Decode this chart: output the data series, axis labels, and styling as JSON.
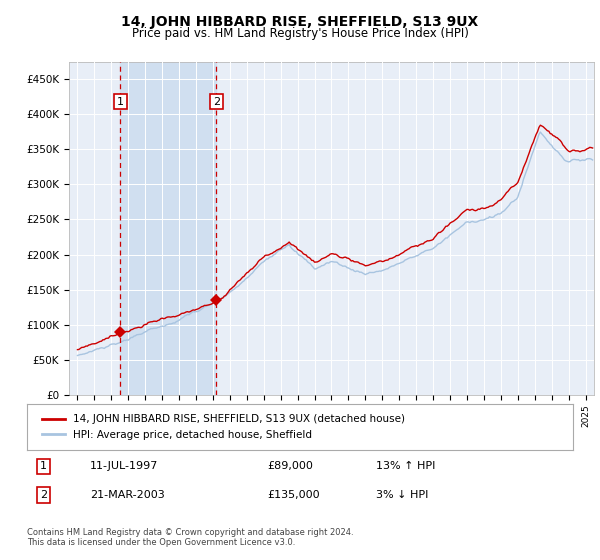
{
  "title": "14, JOHN HIBBARD RISE, SHEFFIELD, S13 9UX",
  "subtitle": "Price paid vs. HM Land Registry's House Price Index (HPI)",
  "yticks": [
    0,
    50000,
    100000,
    150000,
    200000,
    250000,
    300000,
    350000,
    400000,
    450000
  ],
  "ylim": [
    0,
    475000
  ],
  "sale1_year": 1997.538,
  "sale1_price": 89000,
  "sale2_year": 2003.208,
  "sale2_price": 135000,
  "sale1_hpi": "13% ↑ HPI",
  "sale2_hpi": "3% ↓ HPI",
  "hpi_color": "#a8c4e0",
  "price_color": "#cc0000",
  "vline_color": "#cc0000",
  "plot_bg_color": "#e8eef7",
  "span_color": "#d0dff0",
  "legend_label_price": "14, JOHN HIBBARD RISE, SHEFFIELD, S13 9UX (detached house)",
  "legend_label_hpi": "HPI: Average price, detached house, Sheffield",
  "footer": "Contains HM Land Registry data © Crown copyright and database right 2024.\nThis data is licensed under the Open Government Licence v3.0.",
  "xstart": 1995,
  "xend": 2025
}
